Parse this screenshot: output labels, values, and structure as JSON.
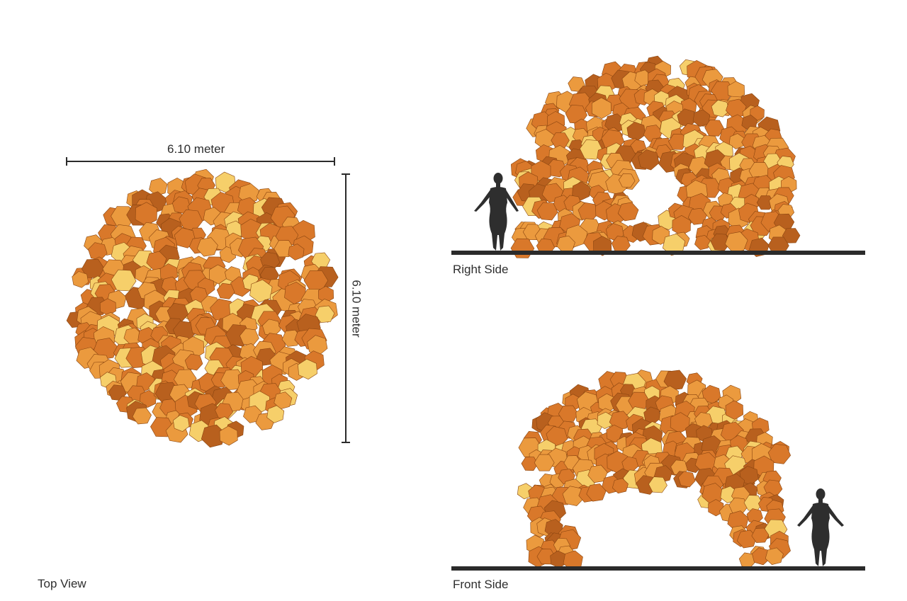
{
  "views": {
    "top": {
      "caption": "Top View"
    },
    "right": {
      "caption": "Right Side"
    },
    "front": {
      "caption": "Front Side"
    }
  },
  "dimensions": {
    "width_label": "6.10 meter",
    "depth_label": "6.10 meter"
  },
  "colors": {
    "tile_dark": "#b8601e",
    "tile_mid": "#d9782a",
    "tile_light": "#eb9a3e",
    "tile_highlight": "#f6cf6a",
    "ground": "#2b2b2b",
    "figure": "#2e2e2e"
  }
}
